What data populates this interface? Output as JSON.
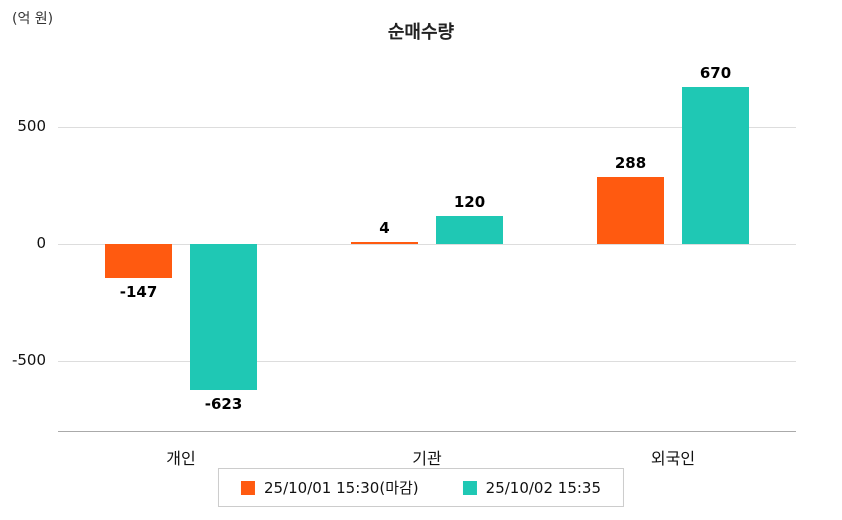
{
  "chart_data": {
    "type": "bar",
    "title": "순매수량",
    "unit_label": "(억 원)",
    "categories": [
      "개인",
      "기관",
      "외국인"
    ],
    "series": [
      {
        "name": "25/10/01 15:30(마감)",
        "color": "#ff5a10",
        "values": [
          -147,
          4,
          288
        ]
      },
      {
        "name": "25/10/02 15:35",
        "color": "#1fc8b4",
        "values": [
          -623,
          120,
          670
        ]
      }
    ],
    "yticks": [
      500,
      0,
      -500
    ],
    "ylim": [
      -750,
      800
    ],
    "grid": true,
    "legend_position": "bottom"
  }
}
